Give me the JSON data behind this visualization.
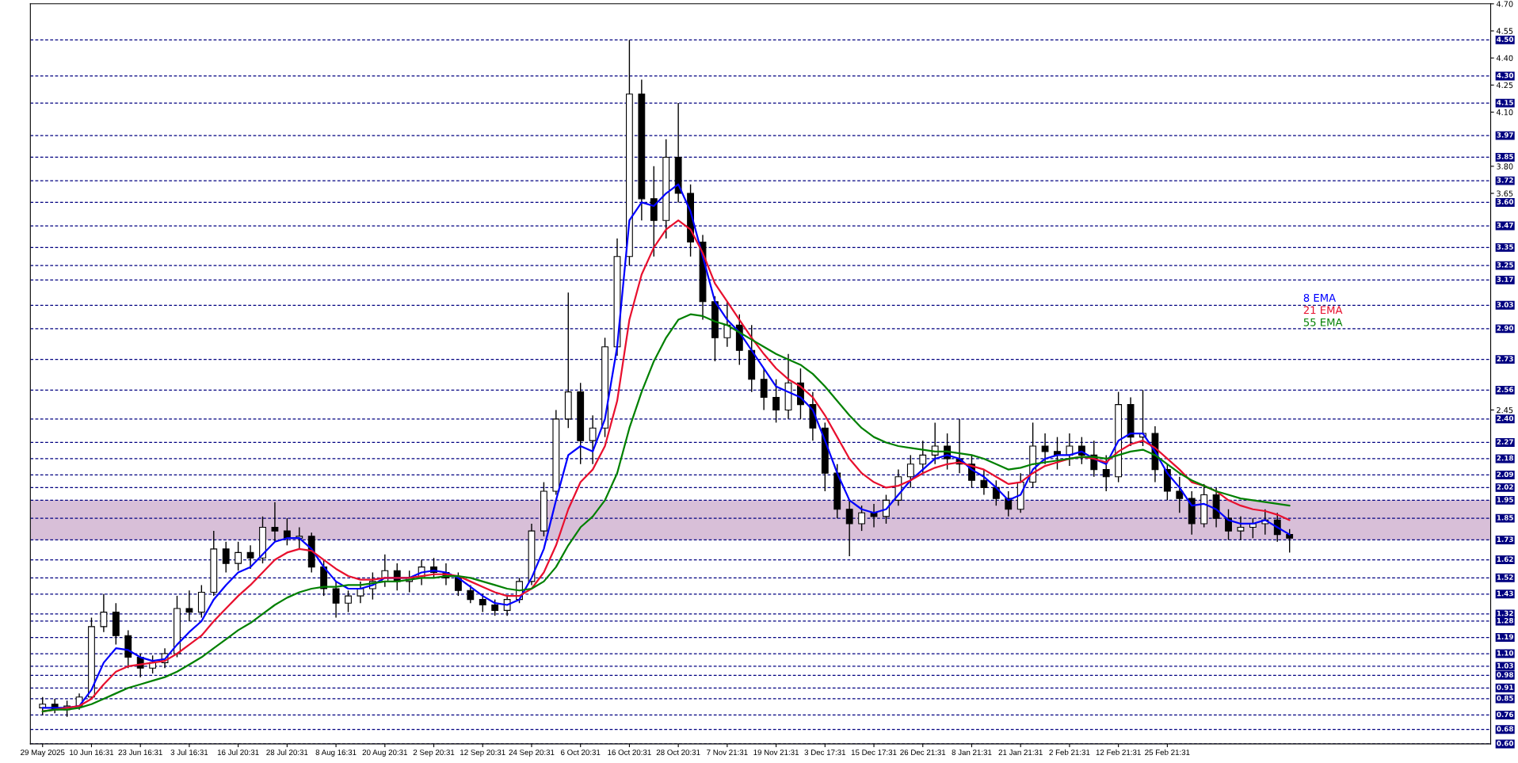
{
  "chart_data": {
    "type": "candlestick",
    "categories": [
      "29 May 2025",
      null,
      null,
      null,
      "10 Jun 16:31",
      null,
      null,
      null,
      "23 Jun 16:31",
      null,
      null,
      null,
      "3 Jul 16:31",
      null,
      null,
      null,
      "16 Jul 20:31",
      null,
      null,
      null,
      "28 Jul 20:31",
      null,
      null,
      null,
      "8 Aug 16:31",
      null,
      null,
      null,
      "20 Aug 20:31",
      null,
      null,
      null,
      "2 Sep 20:31",
      null,
      null,
      null,
      "12 Sep 20:31",
      null,
      null,
      null,
      "24 Sep 20:31",
      null,
      null,
      null,
      "6 Oct 20:31",
      null,
      null,
      null,
      "16 Oct 20:31",
      null,
      null,
      null,
      "28 Oct 20:31",
      null,
      null,
      null,
      "7 Nov 21:31",
      null,
      null,
      null,
      "19 Nov 21:31",
      null,
      null,
      null,
      "3 Dec 17:31",
      null,
      null,
      null,
      "15 Dec 17:31",
      null,
      null,
      null,
      "26 Dec 21:31",
      null,
      null,
      null,
      "8 Jan 21:31",
      null,
      null,
      null,
      "21 Jan 21:31",
      null,
      null,
      null,
      "2 Feb 21:31",
      null,
      null,
      null,
      "12 Feb 21:31",
      null,
      null,
      null,
      "25 Feb 21:31",
      null,
      null,
      null,
      null,
      null,
      null,
      null,
      null,
      null,
      null
    ],
    "ylim": [
      0.6,
      4.7
    ],
    "yticks": [
      {
        "value": 4.7,
        "label": "4.70"
      },
      4.55,
      {
        "value": 4.4,
        "label": "4.40"
      },
      4.25,
      {
        "value": 4.1,
        "label": "4.10"
      },
      {
        "value": 3.8,
        "label": "3.80"
      },
      3.65,
      2.45
    ],
    "color": "#000000",
    "ohlc": [
      [
        0.8,
        0.86,
        0.76,
        0.82
      ],
      [
        0.82,
        0.85,
        0.77,
        0.79
      ],
      [
        0.79,
        0.84,
        0.75,
        0.81
      ],
      [
        0.81,
        0.88,
        0.79,
        0.86
      ],
      [
        0.86,
        1.3,
        0.85,
        1.25
      ],
      [
        1.25,
        1.43,
        1.22,
        1.33
      ],
      [
        1.33,
        1.38,
        1.15,
        1.2
      ],
      [
        1.2,
        1.23,
        1.02,
        1.08
      ],
      [
        1.08,
        1.1,
        0.97,
        1.02
      ],
      [
        1.02,
        1.09,
        0.99,
        1.05
      ],
      [
        1.05,
        1.13,
        1.02,
        1.1
      ],
      [
        1.1,
        1.42,
        1.08,
        1.35
      ],
      [
        1.35,
        1.45,
        1.28,
        1.33
      ],
      [
        1.33,
        1.48,
        1.3,
        1.44
      ],
      [
        1.44,
        1.78,
        1.42,
        1.68
      ],
      [
        1.68,
        1.72,
        1.55,
        1.6
      ],
      [
        1.6,
        1.72,
        1.56,
        1.66
      ],
      [
        1.66,
        1.7,
        1.57,
        1.63
      ],
      [
        1.63,
        1.86,
        1.6,
        1.8
      ],
      [
        1.8,
        1.94,
        1.72,
        1.78
      ],
      [
        1.78,
        1.85,
        1.7,
        1.74
      ],
      [
        1.74,
        1.8,
        1.68,
        1.75
      ],
      [
        1.75,
        1.77,
        1.55,
        1.58
      ],
      [
        1.58,
        1.62,
        1.42,
        1.46
      ],
      [
        1.46,
        1.5,
        1.3,
        1.38
      ],
      [
        1.38,
        1.45,
        1.33,
        1.42
      ],
      [
        1.42,
        1.5,
        1.38,
        1.46
      ],
      [
        1.46,
        1.55,
        1.4,
        1.5
      ],
      [
        1.5,
        1.65,
        1.47,
        1.56
      ],
      [
        1.56,
        1.6,
        1.45,
        1.5
      ],
      [
        1.5,
        1.56,
        1.44,
        1.52
      ],
      [
        1.52,
        1.62,
        1.48,
        1.58
      ],
      [
        1.58,
        1.63,
        1.52,
        1.55
      ],
      [
        1.55,
        1.6,
        1.48,
        1.52
      ],
      [
        1.52,
        1.55,
        1.42,
        1.45
      ],
      [
        1.45,
        1.48,
        1.38,
        1.4
      ],
      [
        1.4,
        1.43,
        1.33,
        1.37
      ],
      [
        1.37,
        1.4,
        1.31,
        1.34
      ],
      [
        1.34,
        1.42,
        1.31,
        1.4
      ],
      [
        1.4,
        1.52,
        1.38,
        1.5
      ],
      [
        1.5,
        1.82,
        1.48,
        1.78
      ],
      [
        1.78,
        2.05,
        1.75,
        2.0
      ],
      [
        2.0,
        2.45,
        1.98,
        2.4
      ],
      [
        2.4,
        3.1,
        2.35,
        2.55
      ],
      [
        2.55,
        2.6,
        2.15,
        2.28
      ],
      [
        2.28,
        2.42,
        2.15,
        2.35
      ],
      [
        2.35,
        2.85,
        2.3,
        2.8
      ],
      [
        2.8,
        3.4,
        2.75,
        3.3
      ],
      [
        3.3,
        4.5,
        3.25,
        4.2
      ],
      [
        4.2,
        4.28,
        3.5,
        3.62
      ],
      [
        3.62,
        3.8,
        3.3,
        3.5
      ],
      [
        3.5,
        3.95,
        3.4,
        3.85
      ],
      [
        3.85,
        4.15,
        3.6,
        3.65
      ],
      [
        3.65,
        3.7,
        3.3,
        3.38
      ],
      [
        3.38,
        3.42,
        2.95,
        3.05
      ],
      [
        3.05,
        3.08,
        2.72,
        2.85
      ],
      [
        2.85,
        3.05,
        2.8,
        2.92
      ],
      [
        2.92,
        2.98,
        2.7,
        2.78
      ],
      [
        2.78,
        2.92,
        2.55,
        2.62
      ],
      [
        2.62,
        2.68,
        2.45,
        2.52
      ],
      [
        2.52,
        2.62,
        2.38,
        2.45
      ],
      [
        2.45,
        2.76,
        2.4,
        2.6
      ],
      [
        2.6,
        2.68,
        2.4,
        2.48
      ],
      [
        2.48,
        2.55,
        2.28,
        2.35
      ],
      [
        2.35,
        2.38,
        2.0,
        2.1
      ],
      [
        2.1,
        2.15,
        1.85,
        1.9
      ],
      [
        1.9,
        1.95,
        1.64,
        1.82
      ],
      [
        1.82,
        1.92,
        1.78,
        1.88
      ],
      [
        1.88,
        1.93,
        1.8,
        1.86
      ],
      [
        1.86,
        1.98,
        1.82,
        1.95
      ],
      [
        1.95,
        2.12,
        1.92,
        2.08
      ],
      [
        2.08,
        2.2,
        2.02,
        2.15
      ],
      [
        2.15,
        2.28,
        2.1,
        2.2
      ],
      [
        2.2,
        2.38,
        2.15,
        2.25
      ],
      [
        2.25,
        2.32,
        2.12,
        2.18
      ],
      [
        2.18,
        2.4,
        2.1,
        2.15
      ],
      [
        2.15,
        2.2,
        2.02,
        2.06
      ],
      [
        2.06,
        2.12,
        1.98,
        2.02
      ],
      [
        2.02,
        2.06,
        1.92,
        1.96
      ],
      [
        1.96,
        2.0,
        1.86,
        1.9
      ],
      [
        1.9,
        2.1,
        1.88,
        2.05
      ],
      [
        2.05,
        2.38,
        2.02,
        2.25
      ],
      [
        2.25,
        2.32,
        2.15,
        2.22
      ],
      [
        2.22,
        2.3,
        2.12,
        2.2
      ],
      [
        2.2,
        2.32,
        2.14,
        2.25
      ],
      [
        2.25,
        2.3,
        2.15,
        2.2
      ],
      [
        2.2,
        2.28,
        2.08,
        2.12
      ],
      [
        2.12,
        2.2,
        2.0,
        2.08
      ],
      [
        2.08,
        2.55,
        2.05,
        2.48
      ],
      [
        2.48,
        2.52,
        2.25,
        2.3
      ],
      [
        2.3,
        2.56,
        2.25,
        2.32
      ],
      [
        2.32,
        2.36,
        2.05,
        2.12
      ],
      [
        2.12,
        2.15,
        1.95,
        2.0
      ],
      [
        2.0,
        2.08,
        1.88,
        1.96
      ],
      [
        1.96,
        2.0,
        1.76,
        1.82
      ],
      [
        1.82,
        2.04,
        1.8,
        1.98
      ],
      [
        1.98,
        2.02,
        1.8,
        1.85
      ],
      [
        1.85,
        1.9,
        1.73,
        1.78
      ],
      [
        1.78,
        1.86,
        1.73,
        1.8
      ],
      [
        1.8,
        1.85,
        1.74,
        1.82
      ],
      [
        1.82,
        1.9,
        1.76,
        1.84
      ],
      [
        1.84,
        1.88,
        1.72,
        1.76
      ],
      [
        1.76,
        1.79,
        1.66,
        1.74
      ]
    ],
    "series": [
      {
        "type": "line",
        "name": "8 EMA",
        "color": "#0000ff",
        "values": [
          0.8,
          0.8,
          0.8,
          0.81,
          0.9,
          1.05,
          1.13,
          1.12,
          1.08,
          1.06,
          1.07,
          1.15,
          1.22,
          1.28,
          1.4,
          1.48,
          1.55,
          1.58,
          1.65,
          1.72,
          1.74,
          1.74,
          1.68,
          1.58,
          1.5,
          1.46,
          1.46,
          1.48,
          1.52,
          1.52,
          1.52,
          1.55,
          1.56,
          1.55,
          1.52,
          1.47,
          1.42,
          1.38,
          1.37,
          1.4,
          1.52,
          1.68,
          1.95,
          2.2,
          2.25,
          2.22,
          2.4,
          2.8,
          3.5,
          3.6,
          3.58,
          3.65,
          3.7,
          3.55,
          3.3,
          3.05,
          2.95,
          2.88,
          2.78,
          2.68,
          2.58,
          2.55,
          2.52,
          2.45,
          2.28,
          2.1,
          1.95,
          1.9,
          1.88,
          1.9,
          1.98,
          2.06,
          2.12,
          2.18,
          2.2,
          2.18,
          2.12,
          2.08,
          2.02,
          1.95,
          1.98,
          2.12,
          2.18,
          2.2,
          2.2,
          2.22,
          2.18,
          2.15,
          2.28,
          2.32,
          2.32,
          2.22,
          2.1,
          2.02,
          1.92,
          1.93,
          1.9,
          1.84,
          1.82,
          1.82,
          1.84,
          1.8,
          1.76
        ]
      },
      {
        "type": "line",
        "name": "21 EMA",
        "color": "#e8102e",
        "values": [
          0.78,
          0.79,
          0.8,
          0.81,
          0.85,
          0.93,
          1.0,
          1.03,
          1.04,
          1.05,
          1.06,
          1.1,
          1.15,
          1.2,
          1.28,
          1.35,
          1.42,
          1.48,
          1.55,
          1.62,
          1.66,
          1.68,
          1.67,
          1.62,
          1.57,
          1.53,
          1.51,
          1.51,
          1.52,
          1.52,
          1.52,
          1.53,
          1.54,
          1.54,
          1.53,
          1.5,
          1.47,
          1.44,
          1.42,
          1.42,
          1.46,
          1.55,
          1.7,
          1.9,
          2.05,
          2.12,
          2.25,
          2.5,
          2.95,
          3.2,
          3.35,
          3.45,
          3.5,
          3.45,
          3.32,
          3.15,
          3.05,
          2.95,
          2.85,
          2.76,
          2.68,
          2.62,
          2.58,
          2.52,
          2.42,
          2.3,
          2.18,
          2.1,
          2.05,
          2.02,
          2.03,
          2.06,
          2.1,
          2.13,
          2.15,
          2.16,
          2.14,
          2.12,
          2.08,
          2.04,
          2.05,
          2.1,
          2.14,
          2.16,
          2.18,
          2.19,
          2.18,
          2.16,
          2.22,
          2.26,
          2.28,
          2.24,
          2.18,
          2.12,
          2.05,
          2.03,
          2.0,
          1.95,
          1.92,
          1.9,
          1.89,
          1.87,
          1.84
        ]
      },
      {
        "type": "line",
        "name": "55 EMA",
        "color": "#008000",
        "values": [
          0.78,
          0.79,
          0.79,
          0.8,
          0.82,
          0.85,
          0.88,
          0.91,
          0.93,
          0.95,
          0.97,
          1.0,
          1.04,
          1.08,
          1.13,
          1.18,
          1.23,
          1.27,
          1.32,
          1.37,
          1.41,
          1.44,
          1.46,
          1.47,
          1.47,
          1.48,
          1.48,
          1.49,
          1.5,
          1.5,
          1.51,
          1.52,
          1.52,
          1.53,
          1.53,
          1.52,
          1.5,
          1.48,
          1.46,
          1.45,
          1.46,
          1.5,
          1.58,
          1.7,
          1.8,
          1.86,
          1.95,
          2.1,
          2.35,
          2.55,
          2.72,
          2.85,
          2.95,
          2.98,
          2.97,
          2.94,
          2.92,
          2.88,
          2.84,
          2.8,
          2.76,
          2.73,
          2.7,
          2.65,
          2.58,
          2.5,
          2.42,
          2.35,
          2.3,
          2.27,
          2.25,
          2.24,
          2.23,
          2.22,
          2.22,
          2.21,
          2.2,
          2.18,
          2.15,
          2.12,
          2.13,
          2.15,
          2.16,
          2.17,
          2.18,
          2.19,
          2.19,
          2.18,
          2.2,
          2.22,
          2.23,
          2.2,
          2.15,
          2.1,
          2.06,
          2.03,
          2.0,
          1.98,
          1.96,
          1.95,
          1.94,
          1.93,
          1.92
        ]
      }
    ],
    "legend": "right",
    "line_style": "solid",
    "marker": "none",
    "grid": false,
    "ref_lines": [
      {
        "axis": "y",
        "value": 4.5,
        "label": "4.50",
        "color": "#000080",
        "line_style": "dashed"
      },
      {
        "axis": "y",
        "value": 4.3,
        "label": "4.30",
        "color": "#000080",
        "line_style": "dashed"
      },
      {
        "axis": "y",
        "value": 4.15,
        "label": "4.15",
        "color": "#000080",
        "line_style": "dashed"
      },
      {
        "axis": "y",
        "value": 3.97,
        "label": "3.97",
        "color": "#000080",
        "line_style": "dashed"
      },
      {
        "axis": "y",
        "value": 3.85,
        "label": "3.85",
        "color": "#000080",
        "line_style": "dashed"
      },
      {
        "axis": "y",
        "value": 3.72,
        "label": "3.72",
        "color": "#000080",
        "line_style": "dashed"
      },
      {
        "axis": "y",
        "value": 3.6,
        "label": "3.60",
        "color": "#000080",
        "line_style": "dashed"
      },
      {
        "axis": "y",
        "value": 3.47,
        "label": "3.47",
        "color": "#000080",
        "line_style": "dashed"
      },
      {
        "axis": "y",
        "value": 3.35,
        "label": "3.35",
        "color": "#000080",
        "line_style": "dashed"
      },
      {
        "axis": "y",
        "value": 3.25,
        "label": "3.25",
        "color": "#000080",
        "line_style": "dashed"
      },
      {
        "axis": "y",
        "value": 3.17,
        "label": "3.17",
        "color": "#000080",
        "line_style": "dashed"
      },
      {
        "axis": "y",
        "value": 3.03,
        "label": "3.03",
        "color": "#000080",
        "line_style": "dashed"
      },
      {
        "axis": "y",
        "value": 2.9,
        "label": "2.90",
        "color": "#000080",
        "line_style": "dashed"
      },
      {
        "axis": "y",
        "value": 2.73,
        "label": "2.73",
        "color": "#000080",
        "line_style": "dashed"
      },
      {
        "axis": "y",
        "value": 2.56,
        "label": "2.56",
        "color": "#000080",
        "line_style": "dashed"
      },
      {
        "axis": "y",
        "value": 2.4,
        "label": "2.40",
        "color": "#000080",
        "line_style": "dashed"
      },
      {
        "axis": "y",
        "value": 2.27,
        "label": "2.27",
        "color": "#000080",
        "line_style": "dashed"
      },
      {
        "axis": "y",
        "value": 2.18,
        "label": "2.18",
        "color": "#000080",
        "line_style": "dashed"
      },
      {
        "axis": "y",
        "value": 2.09,
        "label": "2.09",
        "color": "#000080",
        "line_style": "dashed"
      },
      {
        "axis": "y",
        "value": 2.02,
        "label": "2.02",
        "color": "#000080",
        "line_style": "dashed"
      },
      {
        "axis": "y",
        "value": 1.95,
        "label": "1.95",
        "color": "#000080",
        "line_style": "dashed"
      },
      {
        "axis": "y",
        "value": 1.85,
        "label": "1.85",
        "color": "#000080",
        "line_style": "dashed"
      },
      {
        "axis": "y",
        "value": 1.73,
        "label": "1.73",
        "color": "#000080",
        "line_style": "dashed"
      },
      {
        "axis": "y",
        "value": 1.62,
        "label": "1.62",
        "color": "#000080",
        "line_style": "dashed"
      },
      {
        "axis": "y",
        "value": 1.52,
        "label": "1.52",
        "color": "#000080",
        "line_style": "dashed"
      },
      {
        "axis": "y",
        "value": 1.43,
        "label": "1.43",
        "color": "#000080",
        "line_style": "dashed"
      },
      {
        "axis": "y",
        "value": 1.32,
        "label": "1.32",
        "color": "#000080",
        "line_style": "dashed"
      },
      {
        "axis": "y",
        "value": 1.28,
        "label": "1.28",
        "color": "#000080",
        "line_style": "dashed"
      },
      {
        "axis": "y",
        "value": 1.19,
        "label": "1.19",
        "color": "#000080",
        "line_style": "dashed"
      },
      {
        "axis": "y",
        "value": 1.1,
        "label": "1.10",
        "color": "#000080",
        "line_style": "dashed"
      },
      {
        "axis": "y",
        "value": 1.03,
        "label": "1.03",
        "color": "#000080",
        "line_style": "dashed"
      },
      {
        "axis": "y",
        "value": 0.98,
        "label": "0.98",
        "color": "#000080",
        "line_style": "dashed"
      },
      {
        "axis": "y",
        "value": 0.91,
        "label": "0.91",
        "color": "#000080",
        "line_style": "dashed"
      },
      {
        "axis": "y",
        "value": 0.85,
        "label": "0.85",
        "color": "#000080",
        "line_style": "dashed"
      },
      {
        "axis": "y",
        "value": 0.76,
        "label": "0.76",
        "color": "#000080",
        "line_style": "dashed"
      },
      {
        "axis": "y",
        "value": 0.68,
        "label": "0.68",
        "color": "#000080",
        "line_style": "dashed"
      },
      {
        "axis": "y",
        "value": 0.6,
        "label": "0.60",
        "color": "#000080",
        "line_style": "dashed"
      }
    ],
    "bands": [
      {
        "axis": "y",
        "from": 1.73,
        "to": 1.95,
        "color": "#d8bfd8"
      }
    ]
  }
}
